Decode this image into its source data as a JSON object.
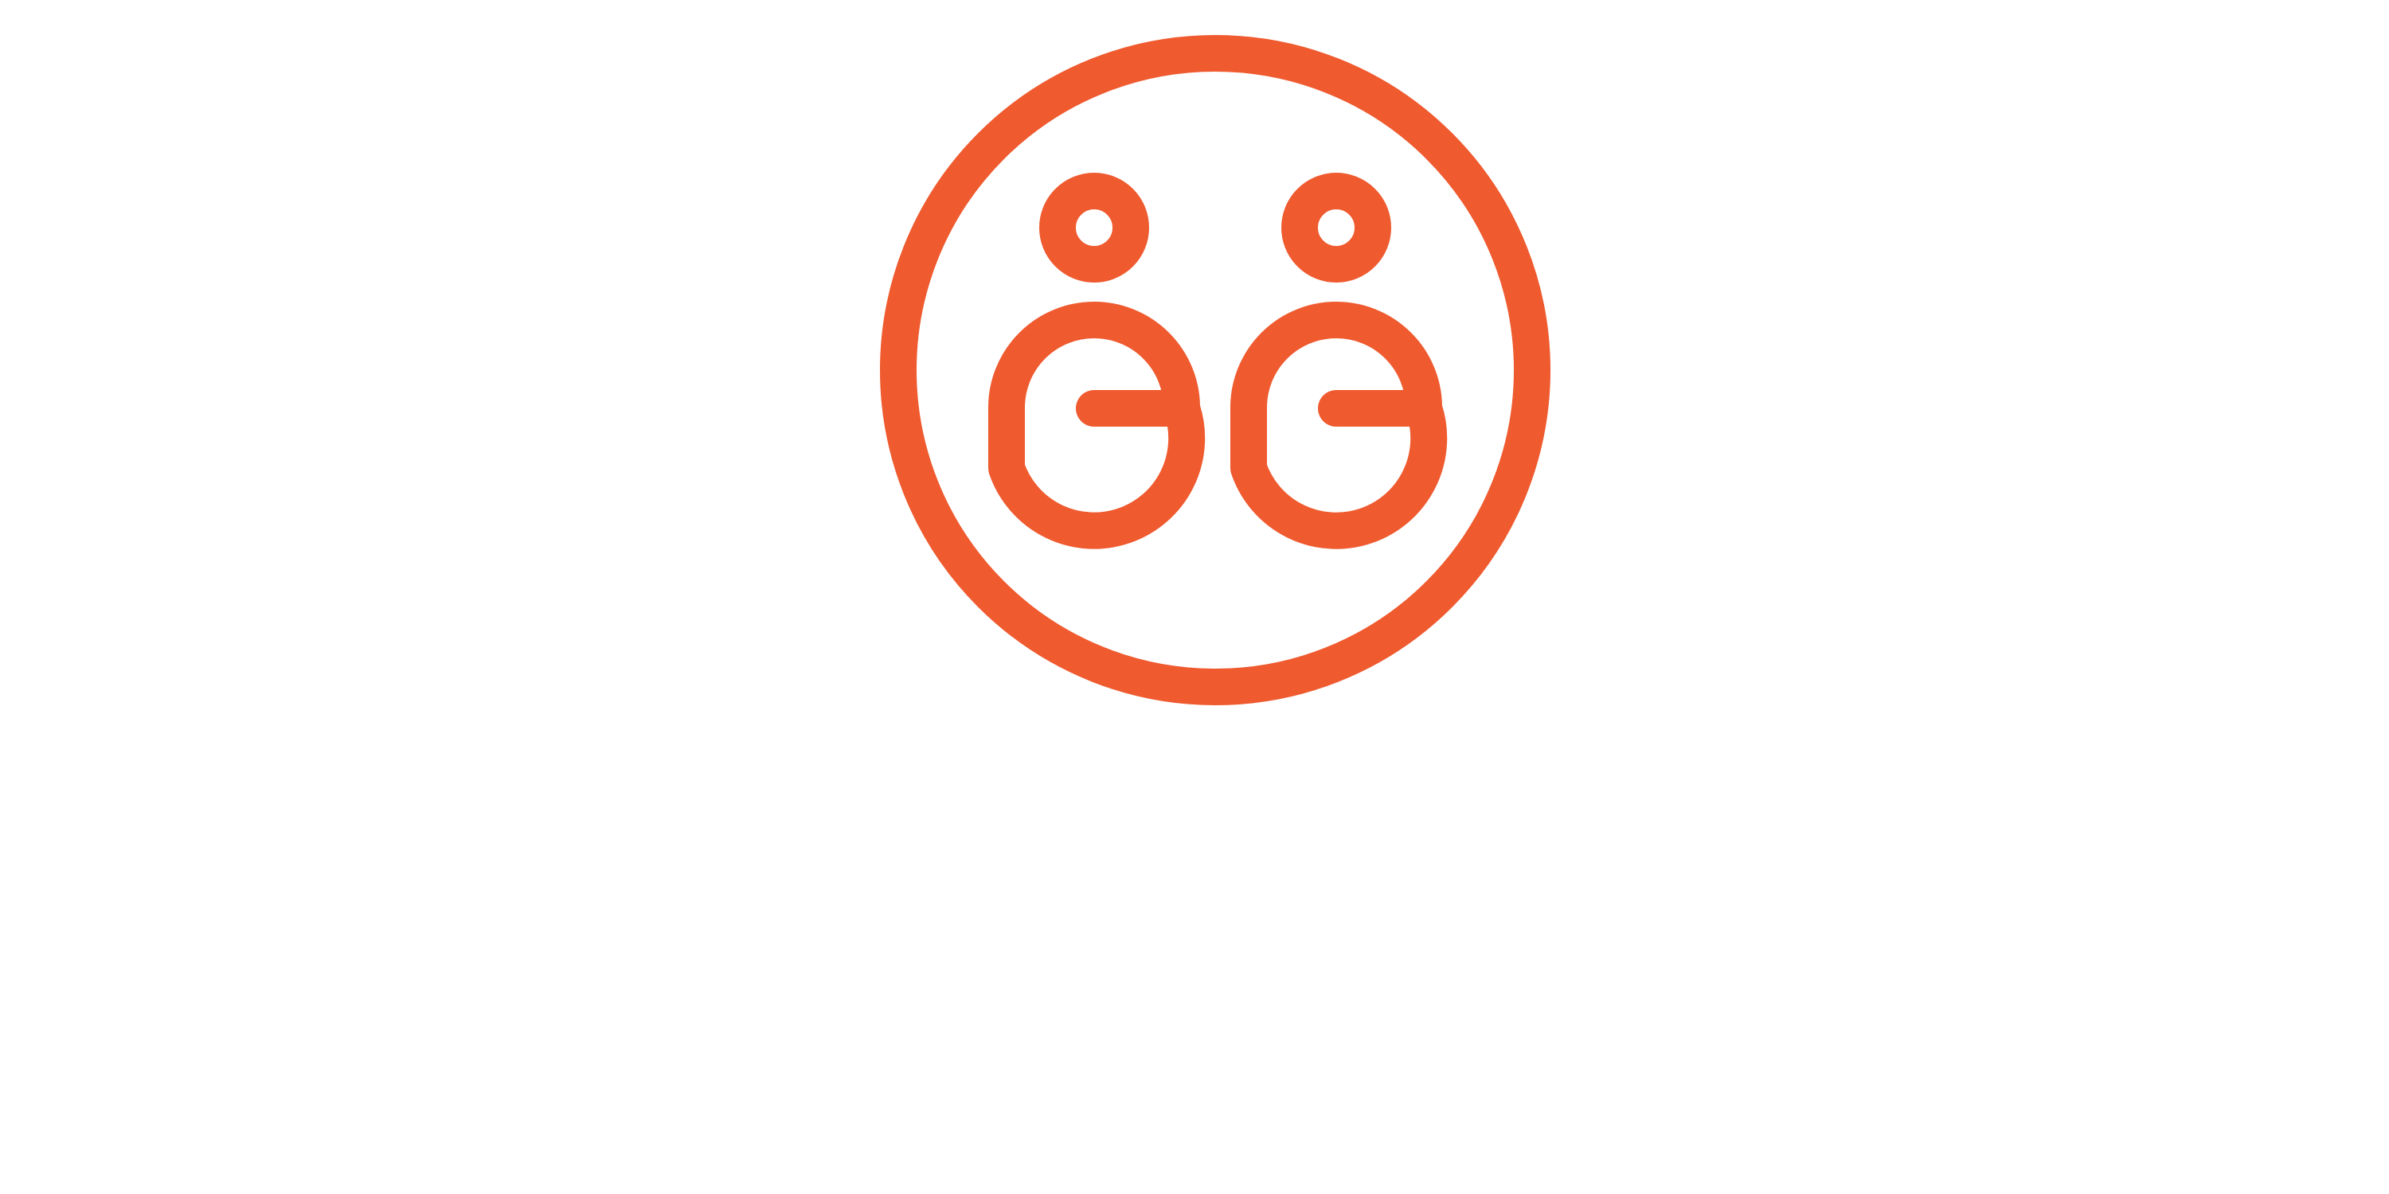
{
  "logo": {
    "name": "gg-circle-logo",
    "mark": "GG",
    "accent_color": "#EF5A2F",
    "background_color": "#FFFFFF",
    "icon": "two-g-letters-with-dots-in-circle"
  }
}
